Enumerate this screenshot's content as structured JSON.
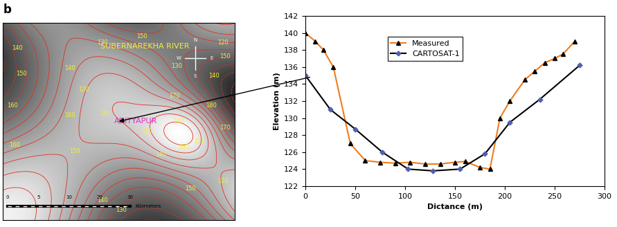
{
  "panel_label": "b",
  "map": {
    "river_label": "SUBERNAREKHA RIVER",
    "place_label": "ADITYAPUR",
    "compass": [
      "N",
      "S",
      "E",
      "W"
    ],
    "scale_labels": [
      "0",
      "5",
      "10",
      "20",
      "30",
      "Kilometers"
    ],
    "contour_labels": [
      "150",
      "120",
      "150",
      "130",
      "140",
      "140",
      "120",
      "130",
      "140",
      "160",
      "150",
      "150",
      "160",
      "160",
      "150",
      "150",
      "140",
      "160",
      "170",
      "160",
      "180",
      "170",
      "170",
      "150",
      "120",
      "130",
      "140"
    ]
  },
  "chart_data": {
    "type": "line",
    "x_label": "Dictance (m)",
    "y_label": "Elevation (m)",
    "xlim": [
      0,
      300
    ],
    "xticks": [
      0,
      50,
      100,
      150,
      200,
      250,
      300
    ],
    "ylim": [
      122,
      142
    ],
    "yticks": [
      122,
      124,
      126,
      128,
      130,
      132,
      134,
      136,
      138,
      140,
      142
    ],
    "legend": "upper center",
    "grid": false,
    "series": [
      {
        "name": "Measured",
        "color": "#f07c1c",
        "marker": "triangle",
        "line_style": "solid",
        "x": [
          0,
          10,
          18,
          28,
          45,
          60,
          75,
          90,
          105,
          120,
          135,
          150,
          160,
          175,
          185,
          195,
          205,
          220,
          230,
          240,
          250,
          258,
          270
        ],
        "values": [
          140,
          139,
          138,
          136,
          127,
          125,
          124.8,
          124.7,
          124.8,
          124.6,
          124.6,
          124.8,
          124.9,
          124.2,
          124,
          130,
          132,
          134.5,
          135.5,
          136.5,
          137,
          137.5,
          139
        ]
      },
      {
        "name": "CARTOSAT-1",
        "color": "#000000",
        "marker": "diamond",
        "line_style": "solid",
        "x": [
          0,
          25,
          50,
          77,
          103,
          128,
          155,
          180,
          205,
          235,
          275
        ],
        "values": [
          135,
          131,
          128.7,
          126,
          124,
          123.8,
          124,
          125.8,
          129.5,
          132.2,
          136.2
        ]
      }
    ]
  }
}
